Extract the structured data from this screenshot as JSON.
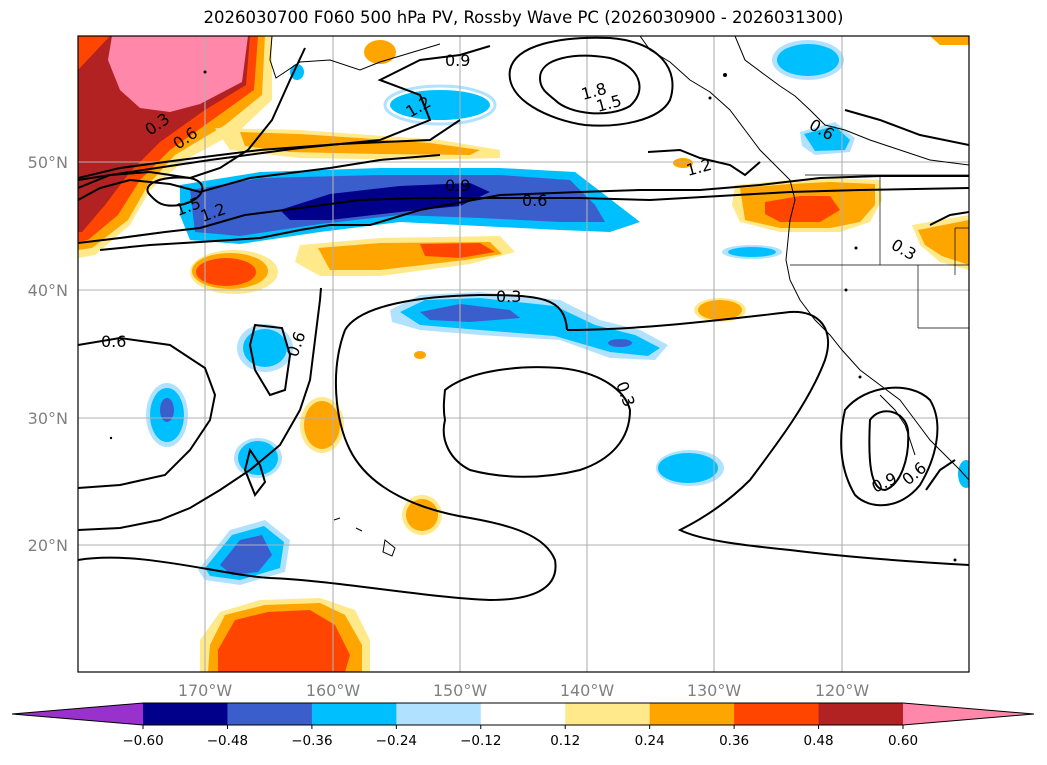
{
  "title": "2026030700 F060 500 hPa PV, Rossby Wave PC (2026030900 - 2026031300)",
  "latitude_labels": [
    "50°N",
    "40°N",
    "30°N",
    "20°N"
  ],
  "longitude_labels": [
    "170°W",
    "160°W",
    "150°W",
    "140°W",
    "130°W",
    "120°W"
  ],
  "contour_labels": [
    "0.3",
    "0.6",
    "1.5",
    "1.2",
    "0.9",
    "1.2",
    "1.8",
    "1.5",
    "0.6",
    "1.2",
    "0.9",
    "0.6",
    "0.3",
    "0.3",
    "0.6",
    "0.6",
    "0.3",
    "0.9",
    "0.6"
  ],
  "colorbar": {
    "tick_labels": [
      "−0.60",
      "−0.48",
      "−0.36",
      "−0.24",
      "−0.12",
      "0.12",
      "0.24",
      "0.36",
      "0.48",
      "0.60"
    ],
    "colors": [
      "#9932cc",
      "#00008b",
      "#3a5fcd",
      "#00bfff",
      "#b0e2ff",
      "#ffffff",
      "#ffe98a",
      "#ffa500",
      "#ff4500",
      "#b22222",
      "#ff88aa"
    ]
  },
  "chart_data": {
    "type": "map",
    "title": "2026030700 F060 500 hPa PV, Rossby Wave PC (2026030900 - 2026031300)",
    "field": "500 hPa PV (contours) with Rossby Wave PC (shaded)",
    "contour_levels": [
      0.3,
      0.6,
      0.9,
      1.2,
      1.5,
      1.8
    ],
    "shading_levels": [
      -0.6,
      -0.48,
      -0.36,
      -0.24,
      -0.12,
      0.12,
      0.24,
      0.36,
      0.48,
      0.6
    ],
    "lon_ticks": [
      "170°W",
      "160°W",
      "150°W",
      "140°W",
      "130°W",
      "120°W"
    ],
    "lat_ticks": [
      "50°N",
      "40°N",
      "30°N",
      "20°N"
    ],
    "colorbar_orientation": "horizontal",
    "colorbar_extend": "both"
  }
}
